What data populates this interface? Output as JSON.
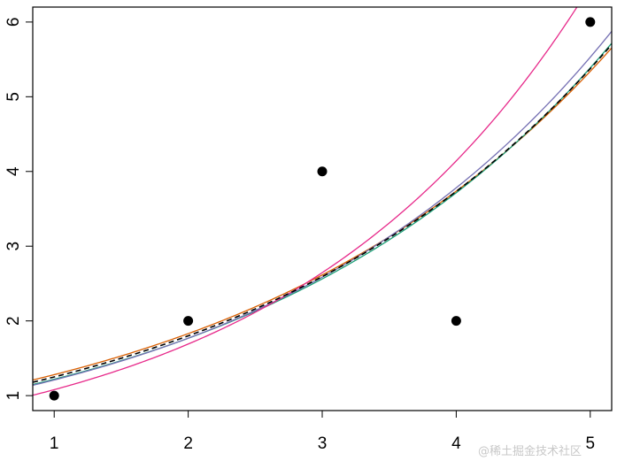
{
  "chart_data": {
    "type": "scatter",
    "title": "",
    "xlabel": "",
    "ylabel": "",
    "xlim": [
      0.84,
      5.16
    ],
    "ylim": [
      0.8,
      6.2
    ],
    "x_ticks": [
      "1",
      "2",
      "3",
      "4",
      "5"
    ],
    "y_ticks": [
      "1",
      "2",
      "3",
      "4",
      "5",
      "6"
    ],
    "grid": false,
    "points": {
      "x": [
        1,
        2,
        3,
        4,
        5
      ],
      "y": [
        1,
        2,
        4,
        2,
        6
      ]
    },
    "curves": [
      {
        "form": "y = a*exp(b*x)",
        "a": 0.896,
        "b": 0.357,
        "color": "#D95F02",
        "dash": false
      },
      {
        "form": "y = a*exp(b*x)",
        "a": 0.841,
        "b": 0.3714,
        "color": "#1B9E77",
        "dash": false
      },
      {
        "form": "y = a*exp(b*x)",
        "a": 0.827,
        "b": 0.38,
        "color": "#7570B3",
        "dash": false
      },
      {
        "form": "y = a*exp(b*x)",
        "a": 0.69,
        "b": 0.448,
        "color": "#E7298A",
        "dash": false
      },
      {
        "form": "y = a*exp(b*x)",
        "a": 0.868,
        "b": 0.3647,
        "color": "#000000",
        "dash": true
      }
    ]
  },
  "watermark": "@稀土掘金技术社区"
}
